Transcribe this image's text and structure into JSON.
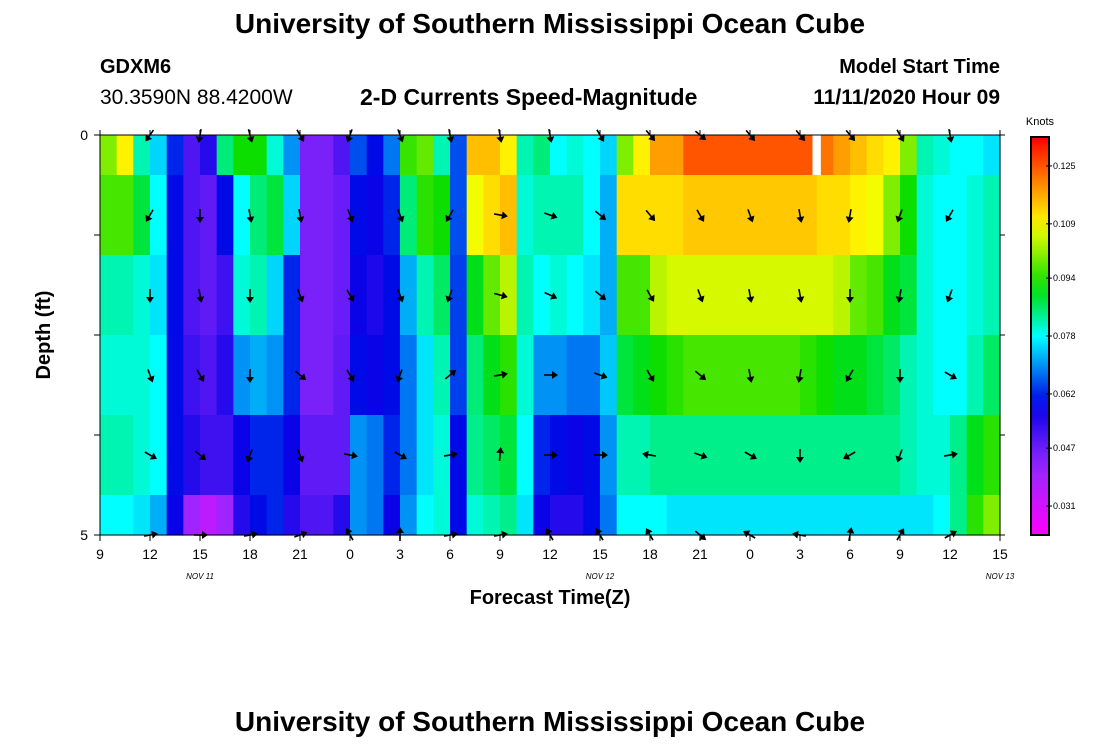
{
  "header": {
    "title": "University of Southern Mississippi Ocean Cube",
    "station": "GDXM6",
    "coords": "30.3590N 88.4200W",
    "subtitle": "2-D Currents Speed-Magnitude",
    "model_start_label": "Model Start Time",
    "model_start_value": "11/11/2020 Hour 09"
  },
  "footer": {
    "title": "University of Southern Mississippi Ocean Cube"
  },
  "chart_data": {
    "type": "heatmap",
    "title": "2-D Currents Speed-Magnitude",
    "xlabel": "Forecast Time(Z)",
    "ylabel": "Depth (ft)",
    "x_ticks": [
      "9",
      "12",
      "15",
      "18",
      "21",
      "0",
      "3",
      "6",
      "9",
      "12",
      "15",
      "18",
      "21",
      "0",
      "3",
      "6",
      "9",
      "12",
      "15"
    ],
    "date_labels": [
      {
        "label": "NOV 11",
        "tick_index": 2.5
      },
      {
        "label": "NOV 12",
        "tick_index": 10.5
      },
      {
        "label": "NOV 13",
        "tick_index": 18.5
      }
    ],
    "y_ticks": [
      "0",
      "5"
    ],
    "ylim": [
      0,
      5
    ],
    "hours_range": [
      0,
      54
    ],
    "colorbar": {
      "unit": "Knots",
      "ticks": [
        "0.125",
        "0.109",
        "0.094",
        "0.078",
        "0.062",
        "0.047",
        "0.031"
      ],
      "min": 0.023,
      "max": 0.133
    },
    "rows": [
      {
        "depth_range": [
          0.0,
          0.5
        ],
        "values": [
          0.1,
          0.11,
          0.082,
          0.075,
          0.062,
          0.05,
          0.055,
          0.085,
          0.092,
          0.092,
          0.08,
          0.07,
          0.045,
          0.045,
          0.05,
          0.065,
          0.06,
          0.068,
          0.095,
          0.098,
          0.082,
          0.065,
          0.115,
          0.115,
          0.11,
          0.082,
          0.085,
          0.078,
          0.08,
          0.078,
          0.075,
          0.1,
          0.11,
          0.118,
          0.118,
          0.125,
          0.125,
          0.125,
          0.125,
          0.125,
          0.125,
          0.125,
          0.125,
          0.122,
          0.118,
          0.115,
          0.112,
          0.11,
          0.1,
          0.082,
          0.08,
          0.078,
          0.078,
          0.076
        ]
      },
      {
        "depth_range": [
          0.5,
          1.5
        ],
        "values": [
          0.096,
          0.096,
          0.088,
          0.078,
          0.06,
          0.05,
          0.048,
          0.06,
          0.078,
          0.085,
          0.088,
          0.075,
          0.045,
          0.045,
          0.047,
          0.06,
          0.058,
          0.062,
          0.085,
          0.094,
          0.092,
          0.065,
          0.108,
          0.112,
          0.115,
          0.08,
          0.082,
          0.082,
          0.082,
          0.078,
          0.072,
          0.112,
          0.112,
          0.112,
          0.112,
          0.114,
          0.114,
          0.114,
          0.114,
          0.114,
          0.114,
          0.114,
          0.114,
          0.112,
          0.112,
          0.11,
          0.108,
          0.1,
          0.092,
          0.08,
          0.078,
          0.078,
          0.08,
          0.082
        ]
      },
      {
        "depth_range": [
          1.5,
          2.5
        ],
        "values": [
          0.082,
          0.082,
          0.08,
          0.076,
          0.06,
          0.05,
          0.048,
          0.052,
          0.08,
          0.082,
          0.075,
          0.062,
          0.045,
          0.045,
          0.047,
          0.058,
          0.056,
          0.06,
          0.072,
          0.082,
          0.086,
          0.064,
          0.09,
          0.098,
          0.104,
          0.082,
          0.078,
          0.08,
          0.078,
          0.076,
          0.072,
          0.096,
          0.096,
          0.104,
          0.106,
          0.106,
          0.106,
          0.106,
          0.106,
          0.106,
          0.106,
          0.106,
          0.106,
          0.106,
          0.104,
          0.098,
          0.096,
          0.09,
          0.088,
          0.08,
          0.078,
          0.078,
          0.08,
          0.082
        ]
      },
      {
        "depth_range": [
          2.5,
          3.5
        ],
        "values": [
          0.08,
          0.08,
          0.08,
          0.078,
          0.06,
          0.052,
          0.05,
          0.055,
          0.07,
          0.072,
          0.07,
          0.062,
          0.045,
          0.045,
          0.048,
          0.06,
          0.058,
          0.06,
          0.068,
          0.076,
          0.082,
          0.064,
          0.085,
          0.09,
          0.094,
          0.08,
          0.07,
          0.07,
          0.068,
          0.068,
          0.074,
          0.088,
          0.09,
          0.092,
          0.094,
          0.096,
          0.096,
          0.096,
          0.096,
          0.096,
          0.096,
          0.096,
          0.094,
          0.092,
          0.09,
          0.09,
          0.088,
          0.086,
          0.082,
          0.08,
          0.078,
          0.078,
          0.082,
          0.086
        ]
      },
      {
        "depth_range": [
          3.5,
          4.5
        ],
        "values": [
          0.082,
          0.082,
          0.08,
          0.078,
          0.06,
          0.055,
          0.052,
          0.052,
          0.058,
          0.062,
          0.062,
          0.058,
          0.048,
          0.048,
          0.048,
          0.07,
          0.068,
          0.062,
          0.068,
          0.076,
          0.08,
          0.06,
          0.084,
          0.086,
          0.088,
          0.078,
          0.062,
          0.06,
          0.058,
          0.06,
          0.07,
          0.082,
          0.082,
          0.084,
          0.084,
          0.084,
          0.084,
          0.084,
          0.084,
          0.084,
          0.084,
          0.084,
          0.084,
          0.084,
          0.084,
          0.084,
          0.084,
          0.084,
          0.082,
          0.08,
          0.08,
          0.084,
          0.09,
          0.094
        ]
      },
      {
        "depth_range": [
          4.5,
          5.0
        ],
        "values": [
          0.078,
          0.078,
          0.076,
          0.072,
          0.058,
          0.04,
          0.035,
          0.04,
          0.055,
          0.06,
          0.062,
          0.055,
          0.05,
          0.05,
          0.055,
          0.07,
          0.068,
          0.058,
          0.07,
          0.078,
          0.08,
          0.06,
          0.08,
          0.082,
          0.084,
          0.076,
          0.058,
          0.055,
          0.055,
          0.06,
          0.068,
          0.078,
          0.078,
          0.078,
          0.076,
          0.076,
          0.076,
          0.076,
          0.076,
          0.076,
          0.076,
          0.076,
          0.076,
          0.076,
          0.076,
          0.076,
          0.076,
          0.076,
          0.076,
          0.076,
          0.078,
          0.084,
          0.094,
          0.1
        ]
      }
    ],
    "arrows": {
      "rows": [
        {
          "depth": 0.0,
          "hours": [
            3,
            6,
            9,
            12,
            15,
            18,
            21,
            24,
            27,
            30,
            33,
            36,
            39,
            42,
            45,
            48,
            51
          ],
          "directions_deg": [
            215,
            190,
            165,
            150,
            200,
            160,
            170,
            170,
            170,
            150,
            140,
            130,
            140,
            140,
            140,
            150,
            170
          ]
        },
        {
          "depth": 1.0,
          "hours": [
            3,
            6,
            9,
            12,
            15,
            18,
            21,
            24,
            27,
            30,
            33,
            36,
            39,
            42,
            45,
            48,
            51
          ],
          "directions_deg": [
            210,
            180,
            170,
            170,
            160,
            160,
            210,
            100,
            110,
            130,
            140,
            150,
            160,
            170,
            190,
            200,
            210
          ]
        },
        {
          "depth": 2.0,
          "hours": [
            3,
            6,
            9,
            12,
            15,
            18,
            21,
            24,
            27,
            30,
            33,
            36,
            39,
            42,
            45,
            48,
            51
          ],
          "directions_deg": [
            180,
            170,
            180,
            160,
            150,
            160,
            200,
            105,
            115,
            130,
            150,
            160,
            170,
            170,
            180,
            190,
            200
          ]
        },
        {
          "depth": 3.0,
          "hours": [
            3,
            6,
            9,
            12,
            15,
            18,
            21,
            24,
            27,
            30,
            33,
            36,
            39,
            42,
            45,
            48,
            51
          ],
          "directions_deg": [
            160,
            150,
            180,
            130,
            150,
            200,
            50,
            80,
            90,
            110,
            150,
            130,
            170,
            190,
            210,
            180,
            120
          ]
        },
        {
          "depth": 4.0,
          "hours": [
            3,
            6,
            9,
            12,
            15,
            18,
            21,
            24,
            27,
            30,
            33,
            36,
            39,
            42,
            45,
            48,
            51
          ],
          "directions_deg": [
            120,
            130,
            200,
            160,
            100,
            120,
            80,
            5,
            90,
            90,
            280,
            110,
            120,
            180,
            240,
            200,
            80
          ]
        },
        {
          "depth": 5.0,
          "hours": [
            3,
            6,
            9,
            12,
            15,
            18,
            21,
            24,
            27,
            30,
            33,
            36,
            39,
            42,
            45,
            48,
            51
          ],
          "directions_deg": [
            80,
            90,
            80,
            70,
            330,
            0,
            80,
            80,
            330,
            330,
            330,
            130,
            300,
            280,
            10,
            30,
            60
          ]
        }
      ]
    },
    "missing_cells": [
      {
        "hour": 43.0,
        "depth_range": [
          0.0,
          0.5
        ]
      }
    ]
  }
}
